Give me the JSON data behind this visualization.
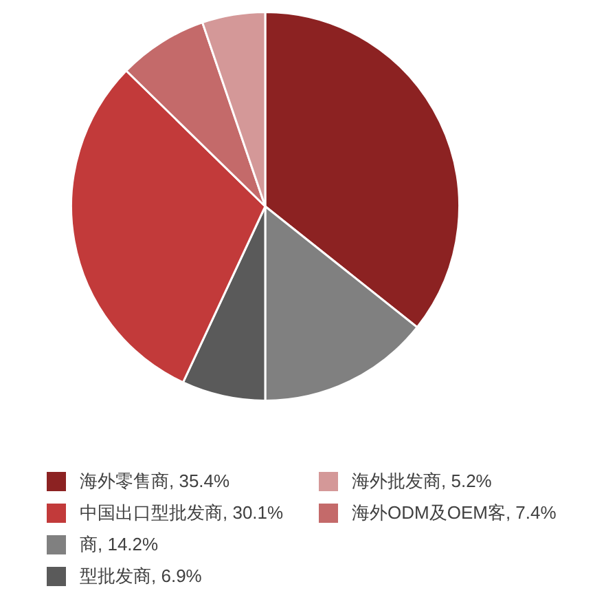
{
  "chart_data": {
    "type": "pie",
    "categories": [
      "海外零售商",
      "商",
      "型批发商",
      "中国出口型批发商",
      "海外ODM及OEM客",
      "海外批发商"
    ],
    "values": [
      35.4,
      14.2,
      6.9,
      30.1,
      7.4,
      5.2
    ],
    "value_labels": [
      "35.4%",
      "14.2%",
      "6.9%",
      "30.1%",
      "7.4%",
      "5.2%"
    ],
    "colors": [
      "#8c2222",
      "#808080",
      "#5a5a5a",
      "#c23a3a",
      "#c46a6a",
      "#d49898"
    ],
    "legend": "bottom"
  }
}
